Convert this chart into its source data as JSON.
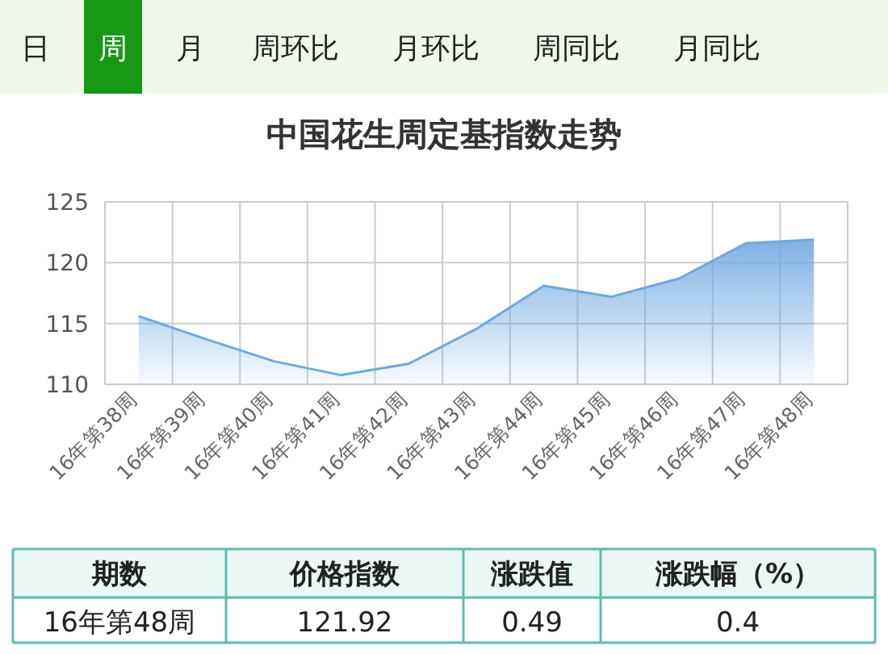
{
  "chart_data": {
    "type": "area",
    "title": "中国花生周定基指数走势",
    "categories": [
      "16年第38周",
      "16年第39周",
      "16年第40周",
      "16年第41周",
      "16年第42周",
      "16年第43周",
      "16年第44周",
      "16年第45周",
      "16年第46周",
      "16年第47周",
      "16年第48周"
    ],
    "series": [
      {
        "color": "#6fa8e0",
        "values": [
          115.6,
          113.7,
          111.9,
          110.75,
          111.7,
          114.55,
          118.1,
          117.2,
          118.7,
          121.6,
          121.9
        ]
      }
    ],
    "ylim": [
      110,
      125
    ],
    "yticks": [
      110,
      115,
      120,
      125
    ],
    "grid": true,
    "annotations": [
      "日",
      "周",
      "月",
      "周环比",
      "月环比",
      "周同比",
      "月同比",
      "期数",
      "价格指数",
      "涨跌值",
      "涨跌幅（%）",
      "16年第48周",
      "121.92",
      "0.49",
      "0.4"
    ]
  }
}
